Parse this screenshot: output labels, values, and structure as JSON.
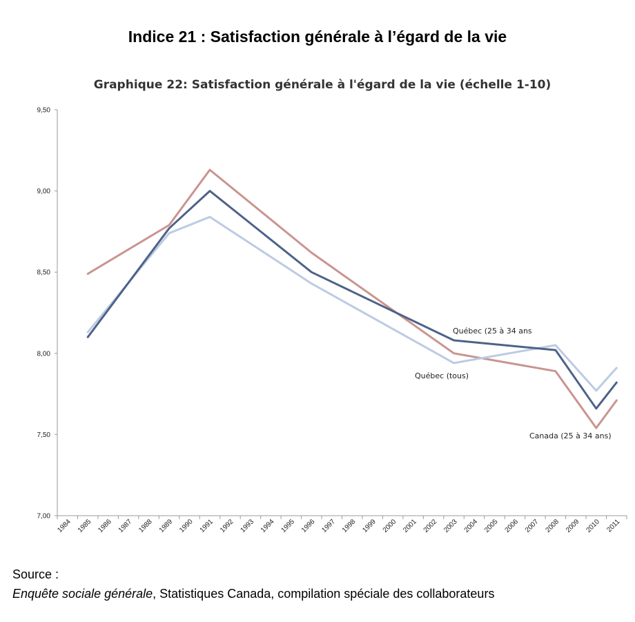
{
  "heading": "Indice 21 : Satisfaction générale à l’égard de la vie",
  "source": {
    "label": "Source :",
    "title": "Enquête sociale générale",
    "rest": ", Statistiques Canada, compilation spéciale des collaborateurs"
  },
  "chart_data": {
    "type": "line",
    "title": "Graphique 22: Satisfaction générale à l'égard de la vie (échelle 1-10)",
    "xlabel": "",
    "ylabel": "",
    "ylim": [
      7.0,
      9.5
    ],
    "yticks": [
      "7,00",
      "7,50",
      "8,00",
      "8,50",
      "9,00",
      "9,50"
    ],
    "categories": [
      "1984",
      "1985",
      "1986",
      "1987",
      "1988",
      "1989",
      "1990",
      "1991",
      "1992",
      "1993",
      "1994",
      "1995",
      "1996",
      "1997",
      "1998",
      "1999",
      "2000",
      "2001",
      "2002",
      "2003",
      "2004",
      "2005",
      "2006",
      "2007",
      "2008",
      "2009",
      "2010",
      "2011"
    ],
    "grid": false,
    "series": [
      {
        "name": "Canada (25 à 34 ans)",
        "color": "#c9948f",
        "points": [
          [
            "1985",
            8.49
          ],
          [
            "1989",
            8.79
          ],
          [
            "1991",
            9.13
          ],
          [
            "1996",
            8.62
          ],
          [
            "2003",
            8.0
          ],
          [
            "2008",
            7.89
          ],
          [
            "2010",
            7.54
          ],
          [
            "2011",
            7.71
          ]
        ]
      },
      {
        "name": "Québec (tous)",
        "color": "#bccbe3",
        "points": [
          [
            "1985",
            8.13
          ],
          [
            "1989",
            8.74
          ],
          [
            "1991",
            8.84
          ],
          [
            "1996",
            8.43
          ],
          [
            "2003",
            7.94
          ],
          [
            "2008",
            8.05
          ],
          [
            "2010",
            7.77
          ],
          [
            "2011",
            7.91
          ]
        ]
      },
      {
        "name": "Québec (25 à 34 ans",
        "color": "#4d6288",
        "points": [
          [
            "1985",
            8.1
          ],
          [
            "1989",
            8.77
          ],
          [
            "1991",
            9.0
          ],
          [
            "1996",
            8.5
          ],
          [
            "2003",
            8.08
          ],
          [
            "2008",
            8.02
          ],
          [
            "2010",
            7.66
          ],
          [
            "2011",
            7.82
          ]
        ]
      }
    ]
  }
}
